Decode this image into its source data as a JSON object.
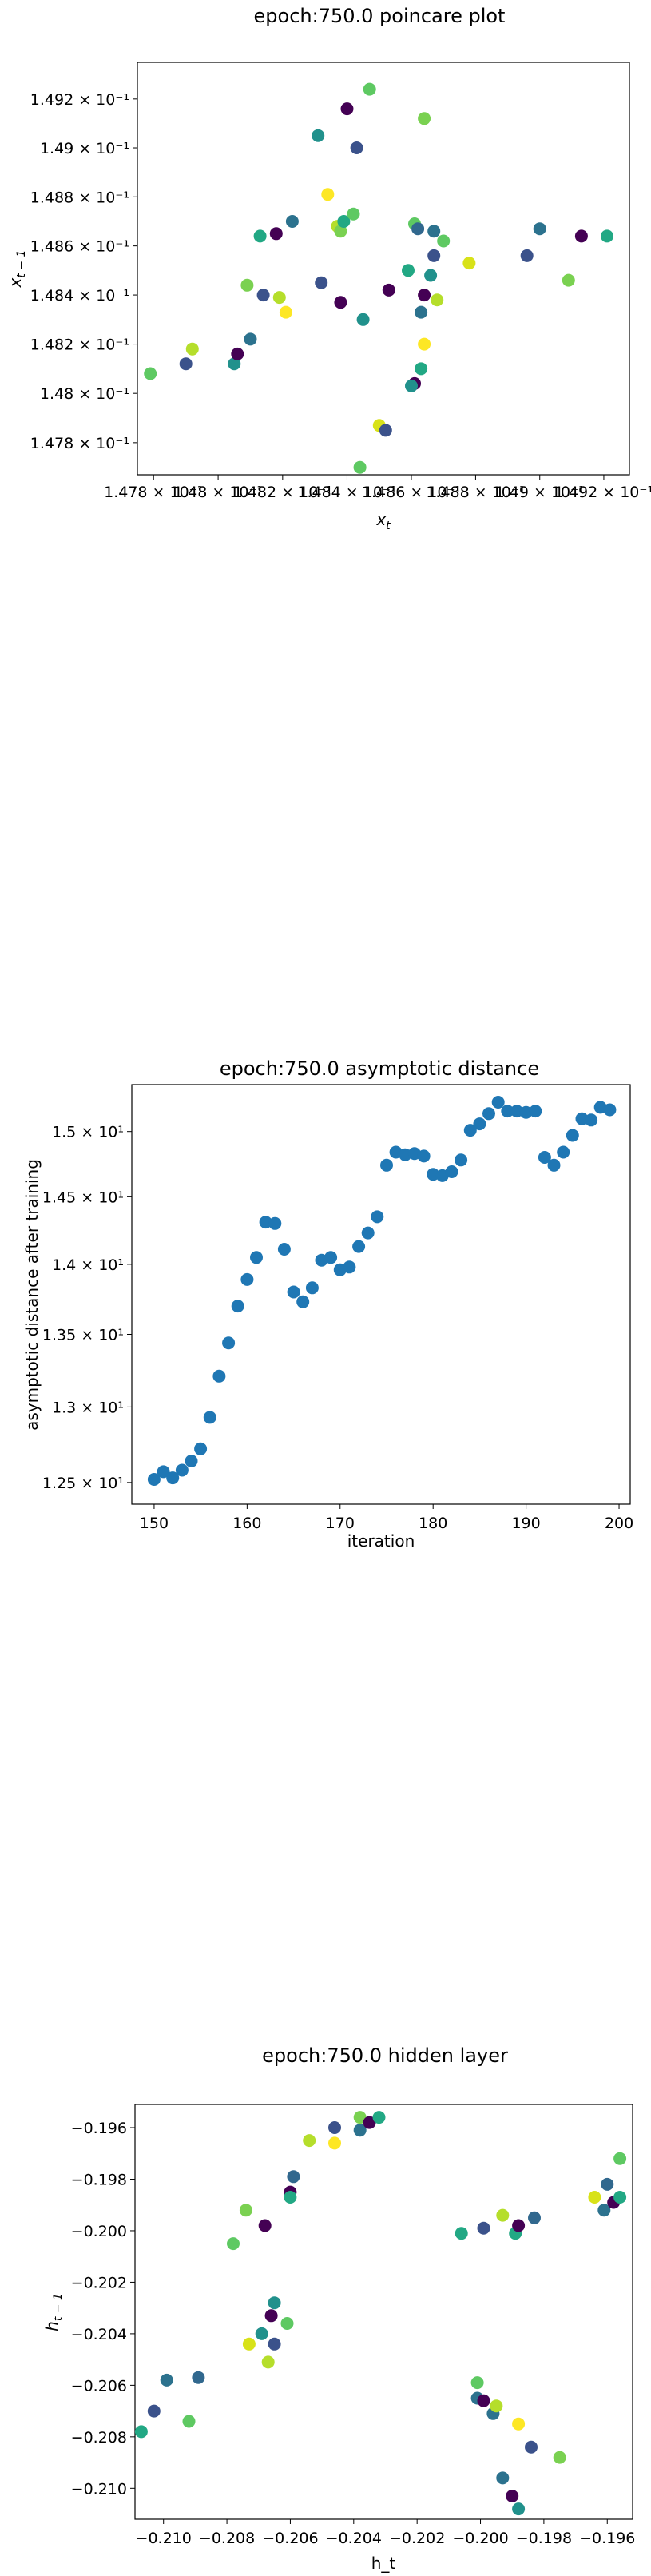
{
  "chart_data": [
    {
      "type": "scatter",
      "title": "epoch:750.0 poincare plot",
      "xlabel": "x_t",
      "ylabel": "x_{t-1}",
      "x_scale": "log",
      "y_scale": "log",
      "xlim": [
        0.14775,
        0.14928
      ],
      "ylim": [
        0.14767,
        0.14935
      ],
      "xticks": [
        {
          "value": 0.1478,
          "label": "1.478 × 10⁻¹"
        },
        {
          "value": 0.148,
          "label": "1.48 × 10⁻¹"
        },
        {
          "value": 0.1482,
          "label": "1.482 × 10⁻¹"
        },
        {
          "value": 0.1484,
          "label": "1.484 × 10⁻¹"
        },
        {
          "value": 0.1486,
          "label": "1.486 × 10⁻¹"
        },
        {
          "value": 0.1488,
          "label": "1.488 × 10⁻¹"
        },
        {
          "value": 0.149,
          "label": "1.49 × 10⁻¹"
        },
        {
          "value": 0.1492,
          "label": "1.492 × 10⁻¹"
        }
      ],
      "yticks": [
        {
          "value": 0.1478,
          "label": "1.478 × 10⁻¹"
        },
        {
          "value": 0.148,
          "label": "1.48 × 10⁻¹"
        },
        {
          "value": 0.1482,
          "label": "1.482 × 10⁻¹"
        },
        {
          "value": 0.1484,
          "label": "1.484 × 10⁻¹"
        },
        {
          "value": 0.1486,
          "label": "1.486 × 10⁻¹"
        },
        {
          "value": 0.1488,
          "label": "1.488 × 10⁻¹"
        },
        {
          "value": 0.149,
          "label": "1.49 × 10⁻¹"
        },
        {
          "value": 0.1492,
          "label": "1.492 × 10⁻¹"
        }
      ],
      "grid": false,
      "points": [
        {
          "x": 0.14779,
          "y": 0.14808,
          "color": "#5ec962"
        },
        {
          "x": 0.1479,
          "y": 0.14812,
          "color": "#3b528b"
        },
        {
          "x": 0.14792,
          "y": 0.14818,
          "color": "#b5de2b"
        },
        {
          "x": 0.14805,
          "y": 0.14812,
          "color": "#21918c"
        },
        {
          "x": 0.14806,
          "y": 0.14816,
          "color": "#440154"
        },
        {
          "x": 0.1481,
          "y": 0.14822,
          "color": "#2c728e"
        },
        {
          "x": 0.14809,
          "y": 0.14844,
          "color": "#7ad151"
        },
        {
          "x": 0.14813,
          "y": 0.14864,
          "color": "#22a884"
        },
        {
          "x": 0.14814,
          "y": 0.1484,
          "color": "#3b528b"
        },
        {
          "x": 0.14818,
          "y": 0.14865,
          "color": "#440154"
        },
        {
          "x": 0.14819,
          "y": 0.14839,
          "color": "#b5de2b"
        },
        {
          "x": 0.14821,
          "y": 0.14833,
          "color": "#fde725"
        },
        {
          "x": 0.14823,
          "y": 0.1487,
          "color": "#2c728e"
        },
        {
          "x": 0.14831,
          "y": 0.14905,
          "color": "#21918c"
        },
        {
          "x": 0.14832,
          "y": 0.14845,
          "color": "#3b528b"
        },
        {
          "x": 0.14834,
          "y": 0.14881,
          "color": "#fde725"
        },
        {
          "x": 0.14837,
          "y": 0.14868,
          "color": "#b5de2b"
        },
        {
          "x": 0.14838,
          "y": 0.14866,
          "color": "#7ad151"
        },
        {
          "x": 0.14839,
          "y": 0.1487,
          "color": "#22a884"
        },
        {
          "x": 0.14838,
          "y": 0.14837,
          "color": "#440154"
        },
        {
          "x": 0.1484,
          "y": 0.14916,
          "color": "#440154"
        },
        {
          "x": 0.14842,
          "y": 0.14873,
          "color": "#5ec962"
        },
        {
          "x": 0.14843,
          "y": 0.149,
          "color": "#3b528b"
        },
        {
          "x": 0.14844,
          "y": 0.1477,
          "color": "#5ec962"
        },
        {
          "x": 0.14845,
          "y": 0.1483,
          "color": "#21918c"
        },
        {
          "x": 0.14847,
          "y": 0.14924,
          "color": "#5ec962"
        },
        {
          "x": 0.1485,
          "y": 0.14787,
          "color": "#d8e219"
        },
        {
          "x": 0.14852,
          "y": 0.14785,
          "color": "#3b528b"
        },
        {
          "x": 0.14853,
          "y": 0.14842,
          "color": "#440154"
        },
        {
          "x": 0.14859,
          "y": 0.1485,
          "color": "#22a884"
        },
        {
          "x": 0.14861,
          "y": 0.14869,
          "color": "#5ec962"
        },
        {
          "x": 0.14861,
          "y": 0.14804,
          "color": "#440154"
        },
        {
          "x": 0.1486,
          "y": 0.14803,
          "color": "#21918c"
        },
        {
          "x": 0.14862,
          "y": 0.14867,
          "color": "#31688e"
        },
        {
          "x": 0.14863,
          "y": 0.14833,
          "color": "#2c728e"
        },
        {
          "x": 0.14863,
          "y": 0.1481,
          "color": "#22a884"
        },
        {
          "x": 0.14864,
          "y": 0.1484,
          "color": "#440154"
        },
        {
          "x": 0.14864,
          "y": 0.1482,
          "color": "#fde725"
        },
        {
          "x": 0.14864,
          "y": 0.14912,
          "color": "#7ad151"
        },
        {
          "x": 0.14866,
          "y": 0.14848,
          "color": "#21918c"
        },
        {
          "x": 0.14867,
          "y": 0.14856,
          "color": "#3b528b"
        },
        {
          "x": 0.14867,
          "y": 0.14866,
          "color": "#2c728e"
        },
        {
          "x": 0.14868,
          "y": 0.14838,
          "color": "#b5de2b"
        },
        {
          "x": 0.1487,
          "y": 0.14862,
          "color": "#5ec962"
        },
        {
          "x": 0.14878,
          "y": 0.14853,
          "color": "#d8e219"
        },
        {
          "x": 0.14896,
          "y": 0.14856,
          "color": "#3b528b"
        },
        {
          "x": 0.149,
          "y": 0.14867,
          "color": "#2c728e"
        },
        {
          "x": 0.14909,
          "y": 0.14846,
          "color": "#7ad151"
        },
        {
          "x": 0.14913,
          "y": 0.14864,
          "color": "#440154"
        },
        {
          "x": 0.14921,
          "y": 0.14864,
          "color": "#22a884"
        }
      ]
    },
    {
      "type": "scatter",
      "title": "epoch:750.0 asymptotic distance",
      "xlabel": "iteration",
      "ylabel": "asymptotic distance after training",
      "y_scale": "log",
      "xlim": [
        147.6,
        201.2
      ],
      "ylim": [
        12.36,
        15.37
      ],
      "xticks": [
        {
          "value": 150,
          "label": "150"
        },
        {
          "value": 160,
          "label": "160"
        },
        {
          "value": 170,
          "label": "170"
        },
        {
          "value": 180,
          "label": "180"
        },
        {
          "value": 190,
          "label": "190"
        },
        {
          "value": 200,
          "label": "200"
        }
      ],
      "yticks": [
        {
          "value": 12.5,
          "label": "1.25 × 10¹"
        },
        {
          "value": 13.0,
          "label": "1.3 × 10¹"
        },
        {
          "value": 13.5,
          "label": "1.35 × 10¹"
        },
        {
          "value": 14.0,
          "label": "1.4 × 10¹"
        },
        {
          "value": 14.5,
          "label": "1.45 × 10¹"
        },
        {
          "value": 15.0,
          "label": "1.5 × 10¹"
        }
      ],
      "grid": false,
      "marker_color": "#1f77b4",
      "x": [
        150,
        151,
        152,
        153,
        154,
        155,
        156,
        157,
        158,
        159,
        160,
        161,
        162,
        163,
        164,
        165,
        166,
        167,
        168,
        169,
        170,
        171,
        172,
        173,
        174,
        175,
        176,
        177,
        178,
        179,
        180,
        181,
        182,
        183,
        184,
        185,
        186,
        187,
        188,
        189,
        190,
        191,
        192,
        193,
        194,
        195,
        196,
        197,
        198,
        199
      ],
      "y": [
        12.52,
        12.57,
        12.53,
        12.58,
        12.64,
        12.72,
        12.93,
        13.21,
        13.44,
        13.7,
        13.89,
        14.05,
        14.31,
        14.3,
        14.11,
        13.8,
        13.73,
        13.83,
        14.03,
        14.05,
        13.96,
        13.98,
        14.13,
        14.23,
        14.35,
        14.74,
        14.84,
        14.82,
        14.83,
        14.81,
        14.67,
        14.66,
        14.69,
        14.78,
        15.01,
        15.06,
        15.14,
        15.23,
        15.16,
        15.16,
        15.15,
        15.16,
        14.8,
        14.74,
        14.84,
        14.97,
        15.1,
        15.09,
        15.19,
        15.17
      ]
    },
    {
      "type": "scatter",
      "title": "epoch:750.0 hidden layer",
      "xlabel": "h_t",
      "ylabel": "h_{t-1}",
      "xlim": [
        -0.2109,
        -0.1952
      ],
      "ylim": [
        -0.2112,
        -0.1951
      ],
      "xticks": [
        {
          "value": -0.21,
          "label": "−0.210"
        },
        {
          "value": -0.208,
          "label": "−0.208"
        },
        {
          "value": -0.206,
          "label": "−0.206"
        },
        {
          "value": -0.204,
          "label": "−0.204"
        },
        {
          "value": -0.202,
          "label": "−0.202"
        },
        {
          "value": -0.2,
          "label": "−0.200"
        },
        {
          "value": -0.198,
          "label": "−0.198"
        },
        {
          "value": -0.196,
          "label": "−0.196"
        }
      ],
      "yticks": [
        {
          "value": -0.196,
          "label": "−0.196"
        },
        {
          "value": -0.198,
          "label": "−0.198"
        },
        {
          "value": -0.2,
          "label": "−0.200"
        },
        {
          "value": -0.202,
          "label": "−0.202"
        },
        {
          "value": -0.204,
          "label": "−0.204"
        },
        {
          "value": -0.206,
          "label": "−0.206"
        },
        {
          "value": -0.208,
          "label": "−0.208"
        },
        {
          "value": -0.21,
          "label": "−0.210"
        }
      ],
      "grid": false,
      "points": [
        {
          "x": -0.2107,
          "y": -0.2078,
          "color": "#22a884"
        },
        {
          "x": -0.2103,
          "y": -0.207,
          "color": "#3b528b"
        },
        {
          "x": -0.2099,
          "y": -0.2058,
          "color": "#2c728e"
        },
        {
          "x": -0.2092,
          "y": -0.2074,
          "color": "#5ec962"
        },
        {
          "x": -0.2089,
          "y": -0.2057,
          "color": "#31688e"
        },
        {
          "x": -0.2078,
          "y": -0.2005,
          "color": "#5ec962"
        },
        {
          "x": -0.2074,
          "y": -0.1992,
          "color": "#7ad151"
        },
        {
          "x": -0.2073,
          "y": -0.2044,
          "color": "#d8e219"
        },
        {
          "x": -0.2069,
          "y": -0.204,
          "color": "#21918c"
        },
        {
          "x": -0.2068,
          "y": -0.1998,
          "color": "#440154"
        },
        {
          "x": -0.2067,
          "y": -0.2051,
          "color": "#b5de2b"
        },
        {
          "x": -0.2066,
          "y": -0.2033,
          "color": "#440154"
        },
        {
          "x": -0.2065,
          "y": -0.2028,
          "color": "#21918c"
        },
        {
          "x": -0.2065,
          "y": -0.2044,
          "color": "#3b528b"
        },
        {
          "x": -0.2061,
          "y": -0.2036,
          "color": "#5ec962"
        },
        {
          "x": -0.206,
          "y": -0.1985,
          "color": "#440154"
        },
        {
          "x": -0.206,
          "y": -0.1987,
          "color": "#22a884"
        },
        {
          "x": -0.2059,
          "y": -0.1979,
          "color": "#31688e"
        },
        {
          "x": -0.2054,
          "y": -0.1965,
          "color": "#b5de2b"
        },
        {
          "x": -0.2046,
          "y": -0.196,
          "color": "#3b528b"
        },
        {
          "x": -0.2046,
          "y": -0.1966,
          "color": "#fde725"
        },
        {
          "x": -0.2038,
          "y": -0.1961,
          "color": "#2c728e"
        },
        {
          "x": -0.2038,
          "y": -0.1956,
          "color": "#7ad151"
        },
        {
          "x": -0.2035,
          "y": -0.1958,
          "color": "#440154"
        },
        {
          "x": -0.2032,
          "y": -0.1956,
          "color": "#22a884"
        },
        {
          "x": -0.2006,
          "y": -0.2001,
          "color": "#22a884"
        },
        {
          "x": -0.2001,
          "y": -0.2059,
          "color": "#5ec962"
        },
        {
          "x": -0.2001,
          "y": -0.2065,
          "color": "#2c728e"
        },
        {
          "x": -0.1999,
          "y": -0.1999,
          "color": "#3b528b"
        },
        {
          "x": -0.1999,
          "y": -0.2066,
          "color": "#440154"
        },
        {
          "x": -0.1996,
          "y": -0.2071,
          "color": "#2c728e"
        },
        {
          "x": -0.1995,
          "y": -0.2068,
          "color": "#b5de2b"
        },
        {
          "x": -0.1993,
          "y": -0.1994,
          "color": "#b5de2b"
        },
        {
          "x": -0.1993,
          "y": -0.2096,
          "color": "#2c728e"
        },
        {
          "x": -0.199,
          "y": -0.2103,
          "color": "#440154"
        },
        {
          "x": -0.1989,
          "y": -0.2001,
          "color": "#22a884"
        },
        {
          "x": -0.1988,
          "y": -0.2075,
          "color": "#fde725"
        },
        {
          "x": -0.1988,
          "y": -0.1998,
          "color": "#440154"
        },
        {
          "x": -0.1988,
          "y": -0.2108,
          "color": "#21918c"
        },
        {
          "x": -0.1984,
          "y": -0.2084,
          "color": "#3b528b"
        },
        {
          "x": -0.1983,
          "y": -0.1995,
          "color": "#31688e"
        },
        {
          "x": -0.1975,
          "y": -0.2088,
          "color": "#7ad151"
        },
        {
          "x": -0.1964,
          "y": -0.1987,
          "color": "#d8e219"
        },
        {
          "x": -0.1961,
          "y": -0.1992,
          "color": "#2c728e"
        },
        {
          "x": -0.196,
          "y": -0.1982,
          "color": "#31688e"
        },
        {
          "x": -0.1958,
          "y": -0.1989,
          "color": "#440154"
        },
        {
          "x": -0.1956,
          "y": -0.1987,
          "color": "#22a884"
        },
        {
          "x": -0.1956,
          "y": -0.1972,
          "color": "#5ec962"
        }
      ]
    }
  ]
}
